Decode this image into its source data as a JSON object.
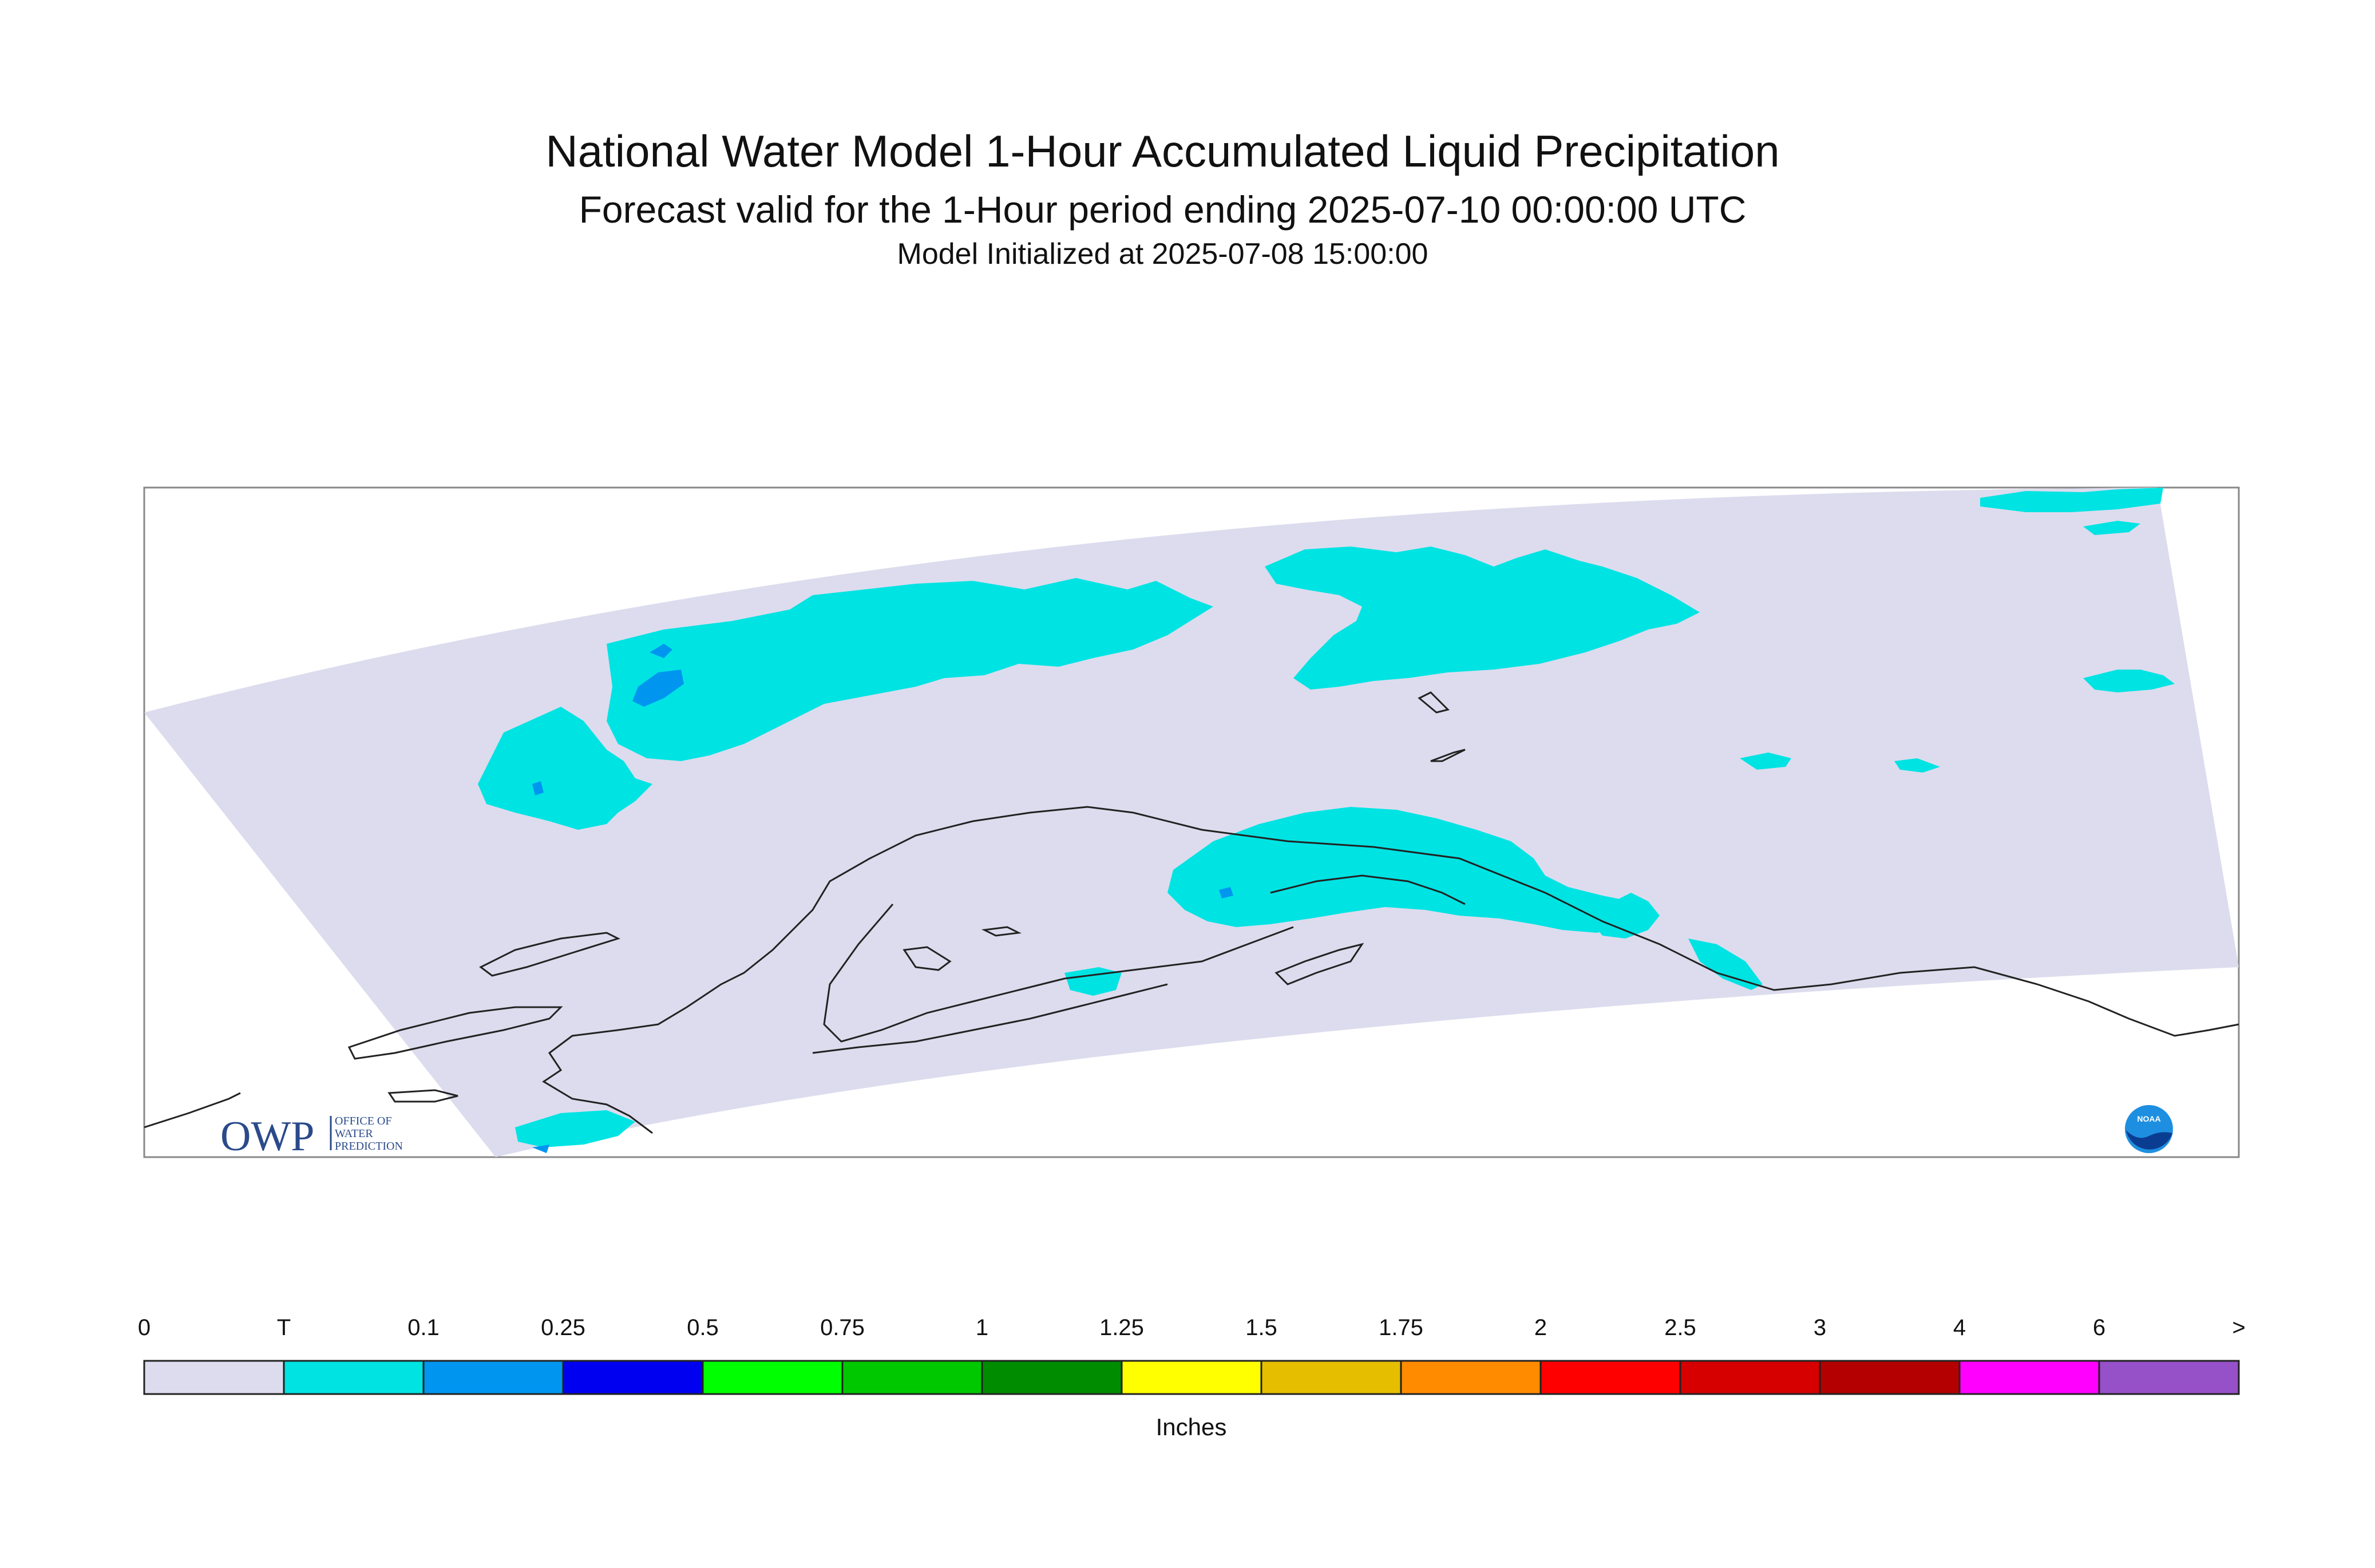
{
  "header": {
    "title": "National Water Model 1-Hour Accumulated Liquid Precipitation",
    "subtitle": "Forecast valid for the 1-Hour period ending 2025-07-10 00:00:00 UTC",
    "initialized": "Model Initialized at 2025-07-08 15:00:00"
  },
  "map": {
    "background_color": "#dcdcee",
    "trace_color": "#00e3e3",
    "light_color": "#0096f0",
    "coastline_color": "#222222"
  },
  "logos": {
    "owp_mark": "OWP",
    "owp_text_1": "OFFICE OF",
    "owp_text_2": "WATER",
    "owp_text_3": "PREDICTION",
    "noaa_mark": "NOAA"
  },
  "legend": {
    "units": "Inches",
    "labels": [
      "0",
      "T",
      "0.1",
      "0.25",
      "0.5",
      "0.75",
      "1",
      "1.25",
      "1.5",
      "1.75",
      "2",
      "2.5",
      "3",
      "4",
      "6",
      ">"
    ],
    "colors": [
      "#dcdcee",
      "#00e3e3",
      "#0096f0",
      "#0000f0",
      "#00ff00",
      "#00c800",
      "#008c00",
      "#ffff00",
      "#e6be00",
      "#ff8c00",
      "#ff0000",
      "#d60000",
      "#b40000",
      "#ff00ff",
      "#9650c8"
    ]
  }
}
